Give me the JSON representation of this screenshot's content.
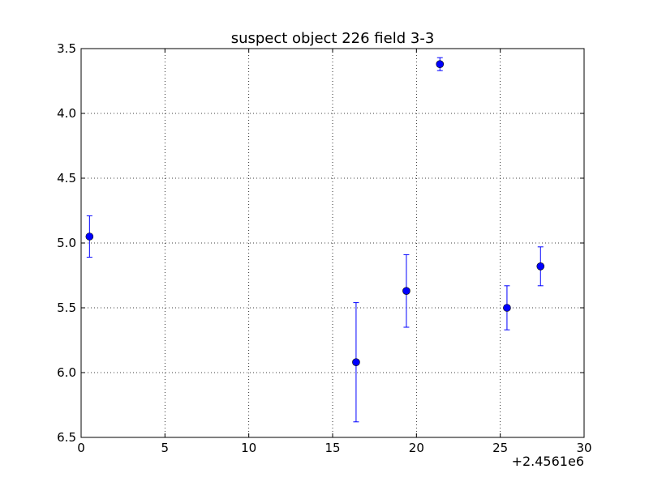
{
  "chart_data": {
    "type": "scatter",
    "title": "suspect object 226 field 3-3",
    "xlabel": "",
    "ylabel": "",
    "x_offset_label": "+2.4561e6",
    "xlim": [
      0,
      30
    ],
    "ylim": [
      6.5,
      3.5
    ],
    "y_inverted": true,
    "grid": true,
    "legend": "none",
    "x_ticks": [
      0,
      5,
      10,
      15,
      20,
      25,
      30
    ],
    "x_tick_labels": [
      "0",
      "5",
      "10",
      "15",
      "20",
      "25",
      "30"
    ],
    "y_ticks": [
      3.5,
      4.0,
      4.5,
      5.0,
      5.5,
      6.0,
      6.5
    ],
    "y_tick_labels": [
      "3.5",
      "4.0",
      "4.5",
      "5.0",
      "5.5",
      "6.0",
      "6.5"
    ],
    "series": [
      {
        "color": "#0000ff",
        "marker": "circle",
        "points": [
          {
            "x": 0.5,
            "y": 4.95,
            "err": 0.16
          },
          {
            "x": 16.4,
            "y": 5.92,
            "err": 0.46
          },
          {
            "x": 19.4,
            "y": 5.37,
            "err": 0.28
          },
          {
            "x": 21.4,
            "y": 3.62,
            "err": 0.05
          },
          {
            "x": 25.4,
            "y": 5.5,
            "err": 0.17
          },
          {
            "x": 27.4,
            "y": 5.18,
            "err": 0.15
          }
        ]
      }
    ]
  }
}
